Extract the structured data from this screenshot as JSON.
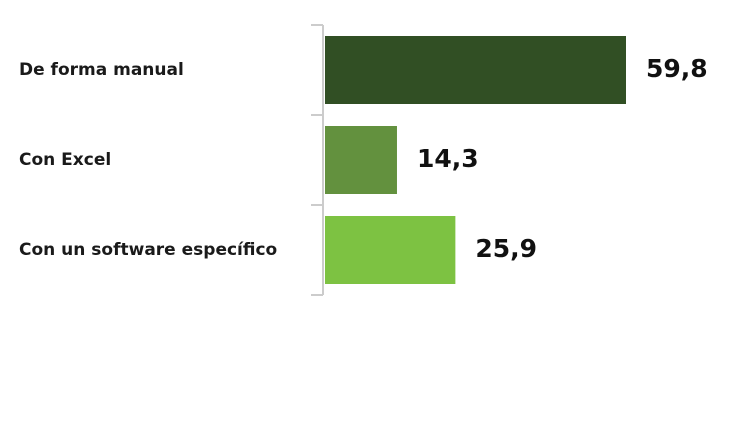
{
  "chart_data": {
    "type": "bar",
    "orientation": "horizontal",
    "categories": [
      "De forma manual",
      "Con Excel",
      "Con un software específico"
    ],
    "values": [
      59.8,
      14.3,
      25.9
    ],
    "value_labels": [
      "59,8",
      "14,3",
      "25,9"
    ],
    "colors": [
      "#314f24",
      "#63913e",
      "#7dc242"
    ],
    "axis_color": "#cccccc",
    "xlim": [
      0,
      60
    ],
    "grid": false,
    "legend": "none"
  }
}
